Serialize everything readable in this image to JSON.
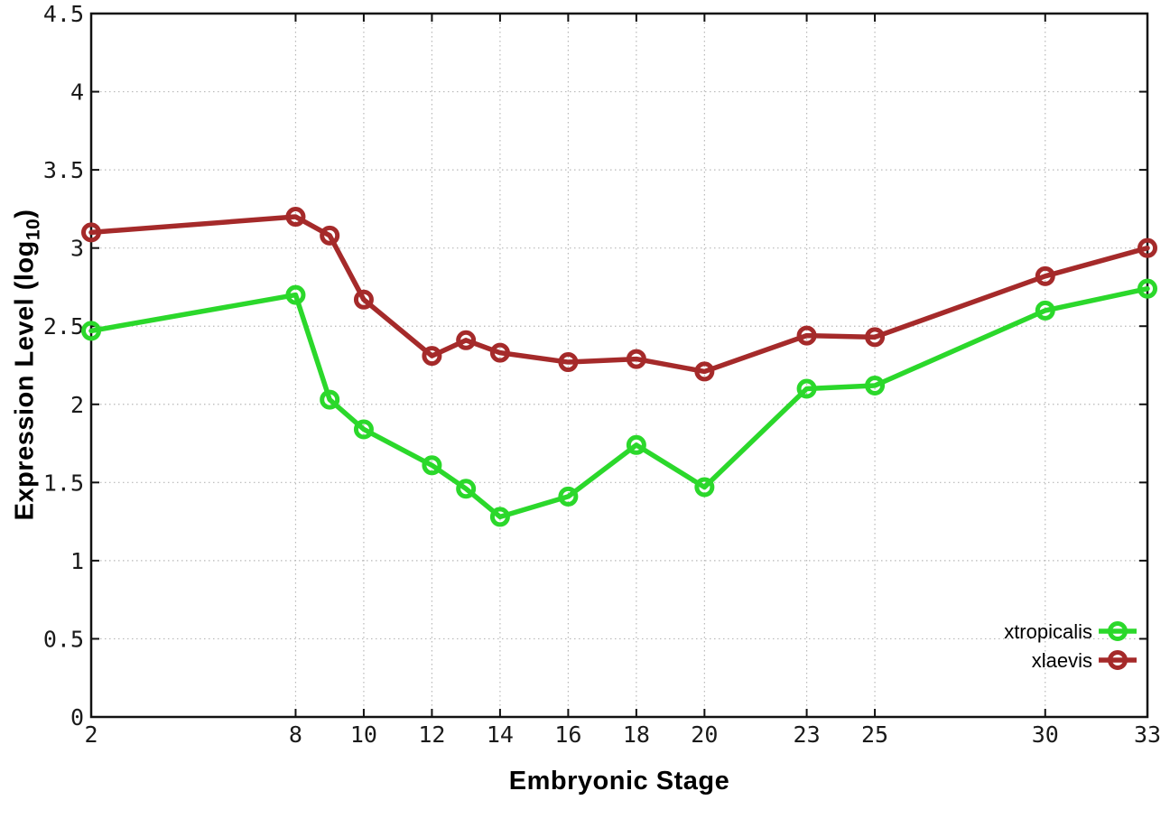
{
  "figure": {
    "background": "#ffffff",
    "border_color": "#111111",
    "grid_color": "#b8b8b8",
    "tick_label_color": "#1a1a1a"
  },
  "labels": {
    "xlabel": "Embryonic Stage",
    "ylabel_main": "Expression Level (log",
    "ylabel_sub": "10",
    "ylabel_close": ")"
  },
  "chart_data": {
    "type": "line",
    "title": "",
    "xlabel": "Embryonic Stage",
    "ylabel": "Expression Level (log10)",
    "xlim": [
      2,
      33
    ],
    "ylim": [
      0,
      4.5
    ],
    "grid": true,
    "legend_position": "bottom-right",
    "marker": "open-circle",
    "x": [
      2,
      8,
      9,
      10,
      12,
      13,
      14,
      16,
      18,
      20,
      23,
      25,
      30,
      33
    ],
    "xtick_values": [
      2,
      8,
      10,
      12,
      14,
      16,
      18,
      20,
      23,
      25,
      30,
      33
    ],
    "xtick_labels": [
      "2",
      "8",
      "10",
      "12",
      "14",
      "16",
      "18",
      "20",
      "23",
      "25",
      "30",
      "33"
    ],
    "ytick_values": [
      0,
      0.5,
      1,
      1.5,
      2,
      2.5,
      3,
      3.5,
      4,
      4.5
    ],
    "ytick_labels": [
      "0",
      "0.5",
      "1",
      "1.5",
      "2",
      "2.5",
      "3",
      "3.5",
      "4",
      "4.5"
    ],
    "series": [
      {
        "name": "xtropicalis",
        "color": "#2bd82b",
        "values": [
          2.47,
          2.7,
          2.03,
          1.84,
          1.61,
          1.46,
          1.28,
          1.41,
          1.74,
          1.47,
          2.1,
          2.12,
          2.6,
          2.74
        ]
      },
      {
        "name": "xlaevis",
        "color": "#a52a2a",
        "values": [
          3.1,
          3.2,
          3.08,
          2.67,
          2.31,
          2.41,
          2.33,
          2.27,
          2.29,
          2.21,
          2.44,
          2.43,
          2.82,
          3.0
        ]
      }
    ]
  }
}
